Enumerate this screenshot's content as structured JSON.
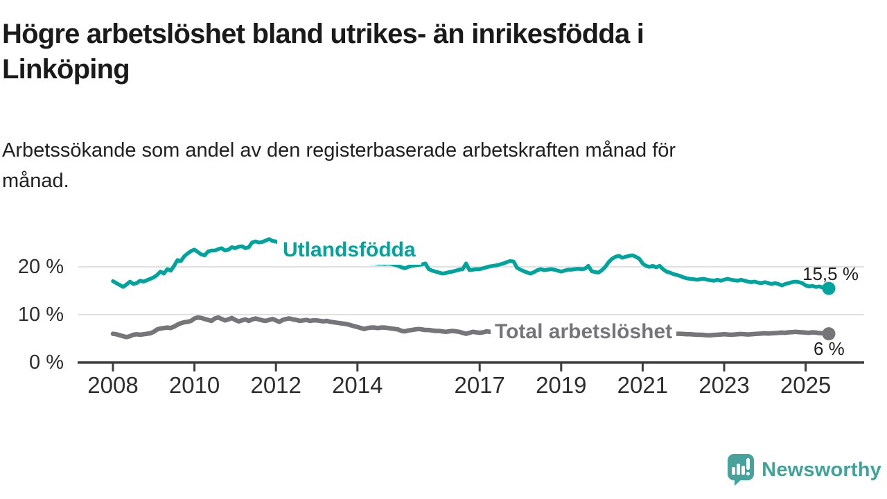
{
  "header": {
    "title_lines": [
      "Högre arbetslöshet bland utrikes- än inrikesfödda i",
      "Linköping"
    ],
    "subtitle_lines": [
      "Arbetssökande som andel av den registerbaserade arbetskraften månad för",
      "månad."
    ]
  },
  "chart_data": {
    "type": "line",
    "x_start": "2008-01",
    "x_end": "2025-07",
    "x_step_months": 1,
    "ylim": [
      0,
      27
    ],
    "grid": "horizontal-only",
    "grid_values": [
      10,
      20
    ],
    "y_ticks": [
      {
        "value": 0,
        "label": "0 %"
      },
      {
        "value": 10,
        "label": "10 %"
      },
      {
        "value": 20,
        "label": "20 %"
      }
    ],
    "x_ticks": [
      {
        "year": 2008,
        "label": "2008"
      },
      {
        "year": 2010,
        "label": "2010"
      },
      {
        "year": 2012,
        "label": "2012"
      },
      {
        "year": 2014,
        "label": "2014"
      },
      {
        "year": 2017,
        "label": "2017"
      },
      {
        "year": 2019,
        "label": "2019"
      },
      {
        "year": 2021,
        "label": "2021"
      },
      {
        "year": 2023,
        "label": "2023"
      },
      {
        "year": 2025,
        "label": "2025"
      }
    ],
    "series": [
      {
        "name": "Utlandsfödda",
        "color": "#00A49D",
        "end_label": "15,5 %",
        "end_value": 15.5,
        "values": [
          17.0,
          16.6,
          16.2,
          15.8,
          16.3,
          16.9,
          16.4,
          16.6,
          17.1,
          16.9,
          17.2,
          17.5,
          17.8,
          18.3,
          19.0,
          18.6,
          19.5,
          19.2,
          20.2,
          21.4,
          21.2,
          22.2,
          22.8,
          23.3,
          23.6,
          23.1,
          22.6,
          22.4,
          23.2,
          23.4,
          23.4,
          23.7,
          23.9,
          23.4,
          23.6,
          24.1,
          23.9,
          24.2,
          24.3,
          23.9,
          24.1,
          25.1,
          25.3,
          25.1,
          25.2,
          25.5,
          25.8,
          25.4,
          25.3,
          24.9,
          24.6,
          24.4,
          24.6,
          24.3,
          24.0,
          23.8,
          23.6,
          23.4,
          23.2,
          23.0,
          22.8,
          22.6,
          22.5,
          22.3,
          22.2,
          22.0,
          21.9,
          21.7,
          21.6,
          21.5,
          21.4,
          21.3,
          21.2,
          21.1,
          21.0,
          20.9,
          20.8,
          20.8,
          20.7,
          20.7,
          20.6,
          20.7,
          20.6,
          20.4,
          20.2,
          19.9,
          19.7,
          20.0,
          20.2,
          20.3,
          20.4,
          20.5,
          20.7,
          19.5,
          19.2,
          19.0,
          18.8,
          18.6,
          18.7,
          18.9,
          19.0,
          19.2,
          19.4,
          19.5,
          20.7,
          19.3,
          19.4,
          19.5,
          19.5,
          19.7,
          19.9,
          20.1,
          20.2,
          20.3,
          20.5,
          20.7,
          21.0,
          21.2,
          21.1,
          19.8,
          19.4,
          19.1,
          18.8,
          18.6,
          18.9,
          19.3,
          19.5,
          19.3,
          19.4,
          19.5,
          19.4,
          19.2,
          19.0,
          19.2,
          19.4,
          19.4,
          19.5,
          19.6,
          19.5,
          19.6,
          20.2,
          19.1,
          18.9,
          18.8,
          19.3,
          20.0,
          21.0,
          21.7,
          22.1,
          22.3,
          21.9,
          22.1,
          22.3,
          22.4,
          22.1,
          21.7,
          20.7,
          20.2,
          20.0,
          20.2,
          19.9,
          20.2,
          19.5,
          19.0,
          18.8,
          18.5,
          18.3,
          18.1,
          17.8,
          17.6,
          17.5,
          17.4,
          17.3,
          17.4,
          17.5,
          17.3,
          17.2,
          17.1,
          17.3,
          17.1,
          17.3,
          17.5,
          17.3,
          17.2,
          17.1,
          17.3,
          17.1,
          16.9,
          16.8,
          16.9,
          16.7,
          16.6,
          16.8,
          16.6,
          16.4,
          16.6,
          16.4,
          16.1,
          16.4,
          16.6,
          16.8,
          16.9,
          16.8,
          16.6,
          16.1,
          15.9,
          16.0,
          15.8,
          15.9,
          15.7,
          15.5
        ]
      },
      {
        "name": "Total arbetslöshet",
        "color": "#76767A",
        "end_label": "6 %",
        "end_value": 6.0,
        "values": [
          6.0,
          5.9,
          5.7,
          5.5,
          5.3,
          5.5,
          5.8,
          5.9,
          5.8,
          5.9,
          6.0,
          6.1,
          6.4,
          6.9,
          7.1,
          7.2,
          7.3,
          7.2,
          7.5,
          7.9,
          8.2,
          8.4,
          8.5,
          8.7,
          9.2,
          9.4,
          9.3,
          9.1,
          8.9,
          8.7,
          9.2,
          9.4,
          9.1,
          8.8,
          9.0,
          9.3,
          8.9,
          8.6,
          8.8,
          9.0,
          8.7,
          9.0,
          9.2,
          9.0,
          8.8,
          8.7,
          8.9,
          9.1,
          8.8,
          8.5,
          8.9,
          9.1,
          9.2,
          9.0,
          8.9,
          8.7,
          8.8,
          8.9,
          8.7,
          8.8,
          8.8,
          8.7,
          8.6,
          8.7,
          8.5,
          8.4,
          8.3,
          8.2,
          8.1,
          8.0,
          7.8,
          7.6,
          7.4,
          7.2,
          7.0,
          7.2,
          7.3,
          7.3,
          7.2,
          7.3,
          7.3,
          7.2,
          7.1,
          7.0,
          6.9,
          6.6,
          6.5,
          6.7,
          6.8,
          6.9,
          7.0,
          6.9,
          6.8,
          6.8,
          6.7,
          6.6,
          6.6,
          6.5,
          6.4,
          6.5,
          6.6,
          6.5,
          6.4,
          6.2,
          6.0,
          6.2,
          6.4,
          6.3,
          6.2,
          6.3,
          6.5,
          6.4,
          6.4,
          6.3,
          6.3,
          6.2,
          6.2,
          6.1,
          6.1,
          6.0,
          5.9,
          5.9,
          5.8,
          5.8,
          5.7,
          5.7,
          5.6,
          5.6,
          5.6,
          5.5,
          5.5,
          5.5,
          5.5,
          5.5,
          5.6,
          5.6,
          5.6,
          5.7,
          5.7,
          5.8,
          5.8,
          5.9,
          5.9,
          6.0,
          6.2,
          6.5,
          6.9,
          7.2,
          7.4,
          7.4,
          7.3,
          7.2,
          7.1,
          7.0,
          6.9,
          6.8,
          6.7,
          6.6,
          6.5,
          6.4,
          6.3,
          6.2,
          6.2,
          6.1,
          6.1,
          6.0,
          6.0,
          6.0,
          5.95,
          5.9,
          5.9,
          5.85,
          5.8,
          5.8,
          5.75,
          5.7,
          5.7,
          5.75,
          5.8,
          5.85,
          5.9,
          5.85,
          5.8,
          5.85,
          5.9,
          5.95,
          5.9,
          5.85,
          5.9,
          5.95,
          6.0,
          6.05,
          6.1,
          6.05,
          6.1,
          6.15,
          6.2,
          6.25,
          6.2,
          6.3,
          6.35,
          6.4,
          6.35,
          6.3,
          6.25,
          6.2,
          6.3,
          6.25,
          6.15,
          6.1,
          6.0
        ]
      }
    ]
  },
  "colors": {
    "grid": "#dcdcdc",
    "axis": "#3d3d3d",
    "teal": "#00A49D",
    "gray": "#76767A",
    "brand": "#3FA39A"
  },
  "footer": {
    "brand": "Newsworthy"
  }
}
